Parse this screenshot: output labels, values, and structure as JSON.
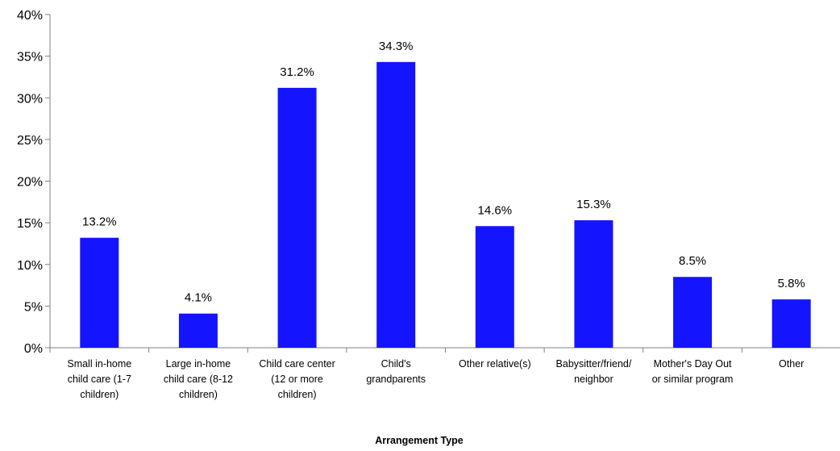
{
  "chart_data": {
    "type": "bar",
    "title": "",
    "xlabel": "Arrangement Type",
    "ylabel": "",
    "ylim": [
      0,
      40
    ],
    "ytick_step": 5,
    "ytick_suffix": "%",
    "grid": false,
    "legend": "none",
    "bar_color": "#1414FF",
    "categories": [
      [
        "Small in-home",
        "child care (1-7",
        "children)"
      ],
      [
        "Large in-home",
        "child care (8-12",
        "children)"
      ],
      [
        "Child care center",
        "(12 or more",
        "children)"
      ],
      [
        "Child's",
        "grandparents"
      ],
      [
        "Other relative(s)"
      ],
      [
        "Babysitter/friend/",
        "neighbor"
      ],
      [
        "Mother's Day Out",
        "or similar program"
      ],
      [
        "Other"
      ]
    ],
    "values": [
      13.2,
      4.1,
      31.2,
      34.3,
      14.6,
      15.3,
      8.5,
      5.8
    ],
    "value_labels": [
      "13.2%",
      "4.1%",
      "31.2%",
      "34.3%",
      "14.6%",
      "15.3%",
      "8.5%",
      "5.8%"
    ]
  }
}
